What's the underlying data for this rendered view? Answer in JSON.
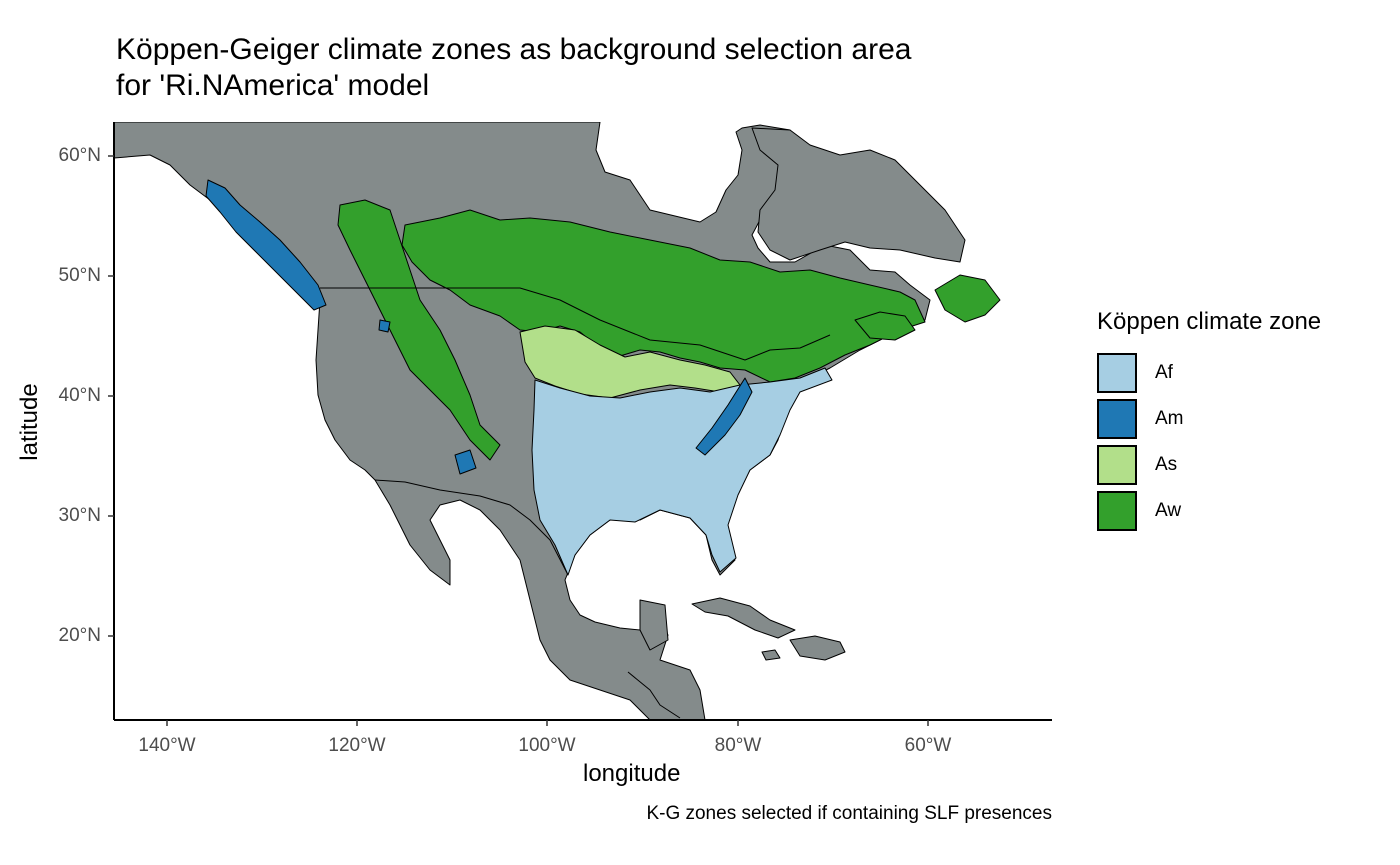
{
  "title": {
    "line1": "Köppen-Geiger climate zones as background selection area",
    "line2": "for 'Ri.NAmerica' model"
  },
  "caption": "K-G zones selected if containing SLF presences",
  "axes": {
    "xlabel": "longitude",
    "ylabel": "latitude",
    "x_ticks": [
      "140°W",
      "120°W",
      "100°W",
      "80°W",
      "60°W"
    ],
    "y_ticks": [
      "60°N",
      "50°N",
      "40°N",
      "30°N",
      "20°N"
    ],
    "xlim": [
      -145.5,
      -47
    ],
    "ylim": [
      12.5,
      62.5
    ]
  },
  "legend": {
    "title": "Köppen climate zone",
    "items": [
      {
        "label": "Af",
        "color": "#a6cee3"
      },
      {
        "label": "Am",
        "color": "#1f78b4"
      },
      {
        "label": "As",
        "color": "#b2df8a"
      },
      {
        "label": "Aw",
        "color": "#33a02c"
      }
    ]
  },
  "colors": {
    "land": "#848b8b",
    "borders": "#000000",
    "background": "#ffffff"
  }
}
